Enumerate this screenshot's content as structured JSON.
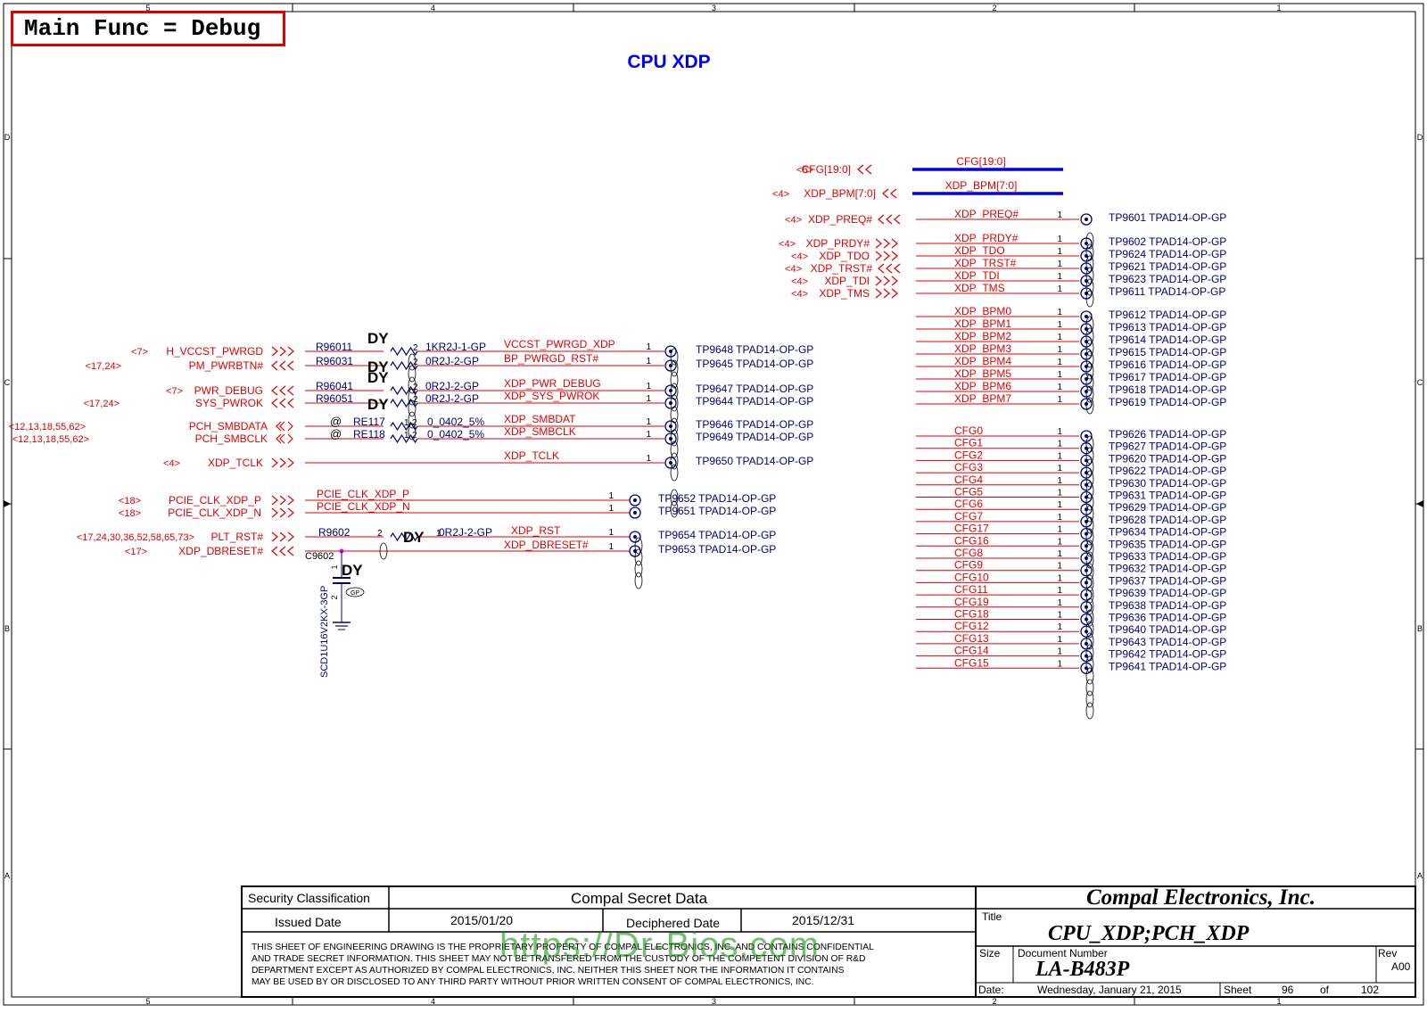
{
  "header_label": "Main Func = Debug",
  "page_title": "CPU XDP",
  "zone_cols": [
    "5",
    "4",
    "3",
    "2",
    "1"
  ],
  "zone_rows": [
    "D",
    "C",
    "B",
    "A"
  ],
  "buses": [
    {
      "ref": "<6>",
      "name": "CFG[19:0]",
      "net": "CFG[19:0]"
    },
    {
      "ref": "<4>",
      "name": "XDP_BPM[7:0]",
      "net": "XDP_BPM[7:0]"
    }
  ],
  "right_top": [
    {
      "ref": "<4>",
      "name": "XDP_PREQ#",
      "net": "XDP_PREQ#",
      "pin": "1",
      "tp": "TP9601",
      "part": "TPAD14-OP-GP",
      "dir": "out"
    }
  ],
  "right_jtag": [
    {
      "ref": "<4>",
      "name": "XDP_PRDY#",
      "net": "XDP_PRDY#",
      "pin": "1",
      "tp": "TP9602",
      "part": "TPAD14-OP-GP",
      "dir": "in"
    },
    {
      "ref": "<4>",
      "name": "XDP_TDO",
      "net": "XDP_TDO",
      "pin": "1",
      "tp": "TP9624",
      "part": "TPAD14-OP-GP",
      "dir": "in"
    },
    {
      "ref": "<4>",
      "name": "XDP_TRST#",
      "net": "XDP_TRST#",
      "pin": "1",
      "tp": "TP9621",
      "part": "TPAD14-OP-GP",
      "dir": "out"
    },
    {
      "ref": "<4>",
      "name": "XDP_TDI",
      "net": "XDP_TDI",
      "pin": "1",
      "tp": "TP9623",
      "part": "TPAD14-OP-GP",
      "dir": "in"
    },
    {
      "ref": "<4>",
      "name": "XDP_TMS",
      "net": "XDP_TMS",
      "pin": "1",
      "tp": "TP9611",
      "part": "TPAD14-OP-GP",
      "dir": "in"
    }
  ],
  "right_bpm": [
    {
      "net": "XDP_BPM0",
      "pin": "1",
      "tp": "TP9612",
      "part": "TPAD14-OP-GP"
    },
    {
      "net": "XDP_BPM1",
      "pin": "1",
      "tp": "TP9613",
      "part": "TPAD14-OP-GP"
    },
    {
      "net": "XDP_BPM2",
      "pin": "1",
      "tp": "TP9614",
      "part": "TPAD14-OP-GP"
    },
    {
      "net": "XDP_BPM3",
      "pin": "1",
      "tp": "TP9615",
      "part": "TPAD14-OP-GP"
    },
    {
      "net": "XDP_BPM4",
      "pin": "1",
      "tp": "TP9616",
      "part": "TPAD14-OP-GP"
    },
    {
      "net": "XDP_BPM5",
      "pin": "1",
      "tp": "TP9617",
      "part": "TPAD14-OP-GP"
    },
    {
      "net": "XDP_BPM6",
      "pin": "1",
      "tp": "TP9618",
      "part": "TPAD14-OP-GP"
    },
    {
      "net": "XDP_BPM7",
      "pin": "1",
      "tp": "TP9619",
      "part": "TPAD14-OP-GP"
    }
  ],
  "right_cfg": [
    {
      "net": "CFG0",
      "pin": "1",
      "tp": "TP9626",
      "part": "TPAD14-OP-GP"
    },
    {
      "net": "CFG1",
      "pin": "1",
      "tp": "TP9627",
      "part": "TPAD14-OP-GP"
    },
    {
      "net": "CFG2",
      "pin": "1",
      "tp": "TP9620",
      "part": "TPAD14-OP-GP"
    },
    {
      "net": "CFG3",
      "pin": "1",
      "tp": "TP9622",
      "part": "TPAD14-OP-GP"
    },
    {
      "net": "CFG4",
      "pin": "1",
      "tp": "TP9630",
      "part": "TPAD14-OP-GP"
    },
    {
      "net": "CFG5",
      "pin": "1",
      "tp": "TP9631",
      "part": "TPAD14-OP-GP"
    },
    {
      "net": "CFG6",
      "pin": "1",
      "tp": "TP9629",
      "part": "TPAD14-OP-GP"
    },
    {
      "net": "CFG7",
      "pin": "1",
      "tp": "TP9628",
      "part": "TPAD14-OP-GP"
    },
    {
      "net": "CFG17",
      "pin": "1",
      "tp": "TP9634",
      "part": "TPAD14-OP-GP"
    },
    {
      "net": "CFG16",
      "pin": "1",
      "tp": "TP9635",
      "part": "TPAD14-OP-GP"
    },
    {
      "net": "CFG8",
      "pin": "1",
      "tp": "TP9633",
      "part": "TPAD14-OP-GP"
    },
    {
      "net": "CFG9",
      "pin": "1",
      "tp": "TP9632",
      "part": "TPAD14-OP-GP"
    },
    {
      "net": "CFG10",
      "pin": "1",
      "tp": "TP9637",
      "part": "TPAD14-OP-GP"
    },
    {
      "net": "CFG11",
      "pin": "1",
      "tp": "TP9639",
      "part": "TPAD14-OP-GP"
    },
    {
      "net": "CFG19",
      "pin": "1",
      "tp": "TP9638",
      "part": "TPAD14-OP-GP"
    },
    {
      "net": "CFG18",
      "pin": "1",
      "tp": "TP9636",
      "part": "TPAD14-OP-GP"
    },
    {
      "net": "CFG12",
      "pin": "1",
      "tp": "TP9640",
      "part": "TPAD14-OP-GP"
    },
    {
      "net": "CFG13",
      "pin": "1",
      "tp": "TP9643",
      "part": "TPAD14-OP-GP"
    },
    {
      "net": "CFG14",
      "pin": "1",
      "tp": "TP9642",
      "part": "TPAD14-OP-GP"
    },
    {
      "net": "CFG15",
      "pin": "1",
      "tp": "TP9641",
      "part": "TPAD14-OP-GP"
    }
  ],
  "left_nets": [
    {
      "ref": "<7>",
      "name": "H_VCCST_PWRGD",
      "dir": "in",
      "res": "R96011",
      "rp1": "",
      "rp2": "2",
      "value": "1KR2J-1-GP",
      "dy": "DY",
      "net": "VCCST_PWRGD_XDP",
      "pin": "1",
      "tp": "TP9648",
      "part": "TPAD14-OP-GP"
    },
    {
      "ref": "<17,24>",
      "name": "PM_PWRBTN#",
      "dir": "out",
      "res": "R96031",
      "rp1": "",
      "rp2": "2",
      "value": "0R2J-2-GP",
      "dy": "DY",
      "net": "BP_PWRGD_RST#",
      "pin": "1",
      "tp": "TP9645",
      "part": "TPAD14-OP-GP"
    },
    {
      "ref": "<7>",
      "name": "PWR_DEBUG",
      "dir": "out",
      "res": "R96041",
      "rp1": "",
      "rp2": "2",
      "value": "0R2J-2-GP",
      "dy": "DY",
      "net": "XDP_PWR_DEBUG",
      "pin": "1",
      "tp": "TP9647",
      "part": "TPAD14-OP-GP"
    },
    {
      "ref": "<17,24>",
      "name": "SYS_PWROK",
      "dir": "out",
      "res": "R96051",
      "rp1": "",
      "rp2": "2",
      "value": "0R2J-2-GP",
      "dy": "DY",
      "net": "XDP_SYS_PWROK",
      "pin": "1",
      "tp": "TP9644",
      "part": "TPAD14-OP-GP"
    },
    {
      "ref": "<12,13,18,55,62>",
      "name": "PCH_SMBDATA",
      "dir": "bi",
      "res": "RE117",
      "rp1": "1",
      "rp2": "2",
      "value": "0_0402_5%",
      "dy": "@",
      "net": "XDP_SMBDAT",
      "pin": "1",
      "tp": "TP9646",
      "part": "TPAD14-OP-GP"
    },
    {
      "ref": "<12,13,18,55,62>",
      "name": "PCH_SMBCLK",
      "dir": "bi",
      "res": "RE118",
      "rp1": "1",
      "rp2": "2",
      "value": "0_0402_5%",
      "dy": "@",
      "net": "XDP_SMBCLK",
      "pin": "1",
      "tp": "TP9649",
      "part": "TPAD14-OP-GP"
    },
    {
      "ref": "<4>",
      "name": "XDP_TCLK",
      "dir": "in",
      "res": "",
      "rp1": "",
      "rp2": "",
      "value": "",
      "dy": "",
      "net": "XDP_TCLK",
      "pin": "1",
      "tp": "TP9650",
      "part": "TPAD14-OP-GP"
    }
  ],
  "pcie_nets": [
    {
      "ref": "<18>",
      "name": "PCIE_CLK_XDP_P",
      "net": "PCIE_CLK_XDP_P",
      "pin": "1",
      "tp": "TP9652",
      "part": "TPAD14-OP-GP"
    },
    {
      "ref": "<18>",
      "name": "PCIE_CLK_XDP_N",
      "net": "PCIE_CLK_XDP_N",
      "pin": "1",
      "tp": "TP9651",
      "part": "TPAD14-OP-GP"
    }
  ],
  "rst_nets": [
    {
      "ref": "<17,24,30,36,52,58,65,73>",
      "name": "PLT_RST#",
      "dir": "in",
      "res": "R9602",
      "rp1": "2",
      "rp2": "1",
      "value": "0R2J-2-GP",
      "dy": "DY",
      "net": "XDP_RST",
      "pin": "1",
      "tp": "TP9654",
      "part": "TPAD14-OP-GP"
    },
    {
      "ref": "<17>",
      "name": "XDP_DBRESET#",
      "dir": "out",
      "res": "",
      "rp1": "",
      "rp2": "",
      "value": "",
      "dy": "",
      "net": "XDP_DBRESET#",
      "pin": "1",
      "tp": "TP9653",
      "part": "TPAD14-OP-GP"
    }
  ],
  "cap": {
    "ref": "C9602",
    "pin1": "1",
    "pin2": "2",
    "dy": "DY",
    "part": "SCD1U16V2KX-3GP",
    "tag": "GP"
  },
  "title_block": {
    "security_label": "Security Classification",
    "security_value": "Compal Secret Data",
    "issued_label": "Issued Date",
    "issued_value": "2015/01/20",
    "deciphered_label": "Deciphered Date",
    "deciphered_value": "2015/12/31",
    "notice_lines": [
      "THIS SHEET OF ENGINEERING DRAWING IS THE PROPRIETARY PROPERTY OF COMPAL ELECTRONICS, INC. AND CONTAINS CONFIDENTIAL",
      "AND TRADE SECRET INFORMATION. THIS SHEET MAY NOT BE TRANSFERED FROM THE CUSTODY OF THE COMPETENT DIVISION OF R&D",
      "DEPARTMENT EXCEPT AS AUTHORIZED BY COMPAL ELECTRONICS, INC. NEITHER THIS SHEET NOR THE INFORMATION IT CONTAINS",
      "MAY BE USED BY OR DISCLOSED TO ANY THIRD PARTY WITHOUT PRIOR WRITTEN CONSENT OF COMPAL ELECTRONICS, INC."
    ],
    "company": "Compal Electronics, Inc.",
    "title_label": "Title",
    "title_value": "CPU_XDP;PCH_XDP",
    "size_label": "Size",
    "docnum_label": "Document Number",
    "docnum_value": "LA-B483P",
    "rev_label": "Rev",
    "rev_value": "A00",
    "date_label": "Date:",
    "date_value": "Wednesday, January 21, 2015",
    "sheet_label": "Sheet",
    "sheet_value": "96",
    "of_label": "of",
    "total_value": "102"
  },
  "watermark": "https://Dr-Bios.com"
}
